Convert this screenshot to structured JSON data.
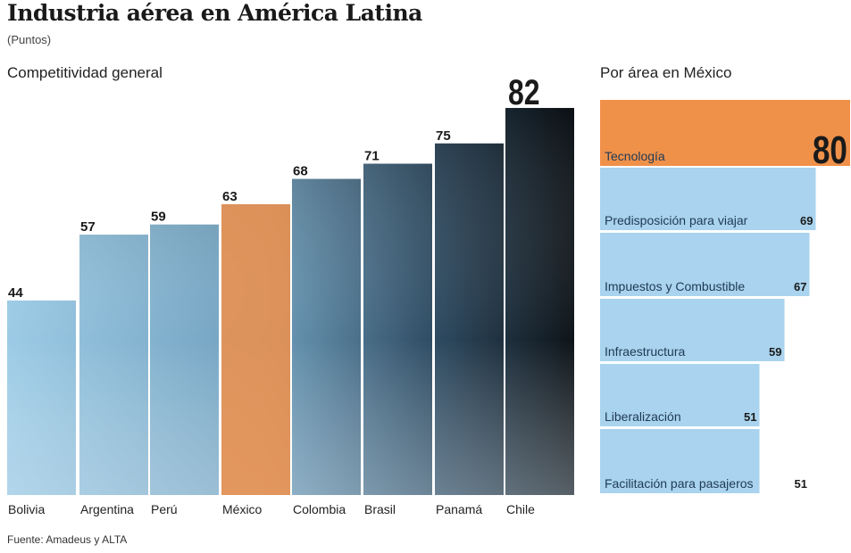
{
  "title": "Industria aérea en América Latina",
  "unit": "(Puntos)",
  "source": "Fuente: Amadeus y ALTA",
  "colors": {
    "highlight": "#f0914a",
    "light_bar": "#a9d3ee",
    "dark_bar": "#1a1a1a"
  },
  "chart_data": [
    {
      "type": "bar",
      "title": "Competitividad general",
      "categories": [
        "Bolivia",
        "Argentina",
        "Perú",
        "México",
        "Colombia",
        "Brasil",
        "Panamá",
        "Chile"
      ],
      "values": [
        44,
        57,
        59,
        63,
        68,
        71,
        75,
        82
      ],
      "highlight": "México",
      "background_image": "airplane-photo"
    },
    {
      "type": "bar",
      "orientation": "horizontal",
      "title": "Por área en México",
      "categories": [
        "Tecnología",
        "Predisposición para viajar",
        "Impuestos y Combustible",
        "Infraestructura",
        "Liberalización",
        "Facilitación para pasajeros"
      ],
      "values": [
        80,
        69,
        67,
        59,
        51,
        51
      ],
      "highlight": "Tecnología"
    }
  ]
}
